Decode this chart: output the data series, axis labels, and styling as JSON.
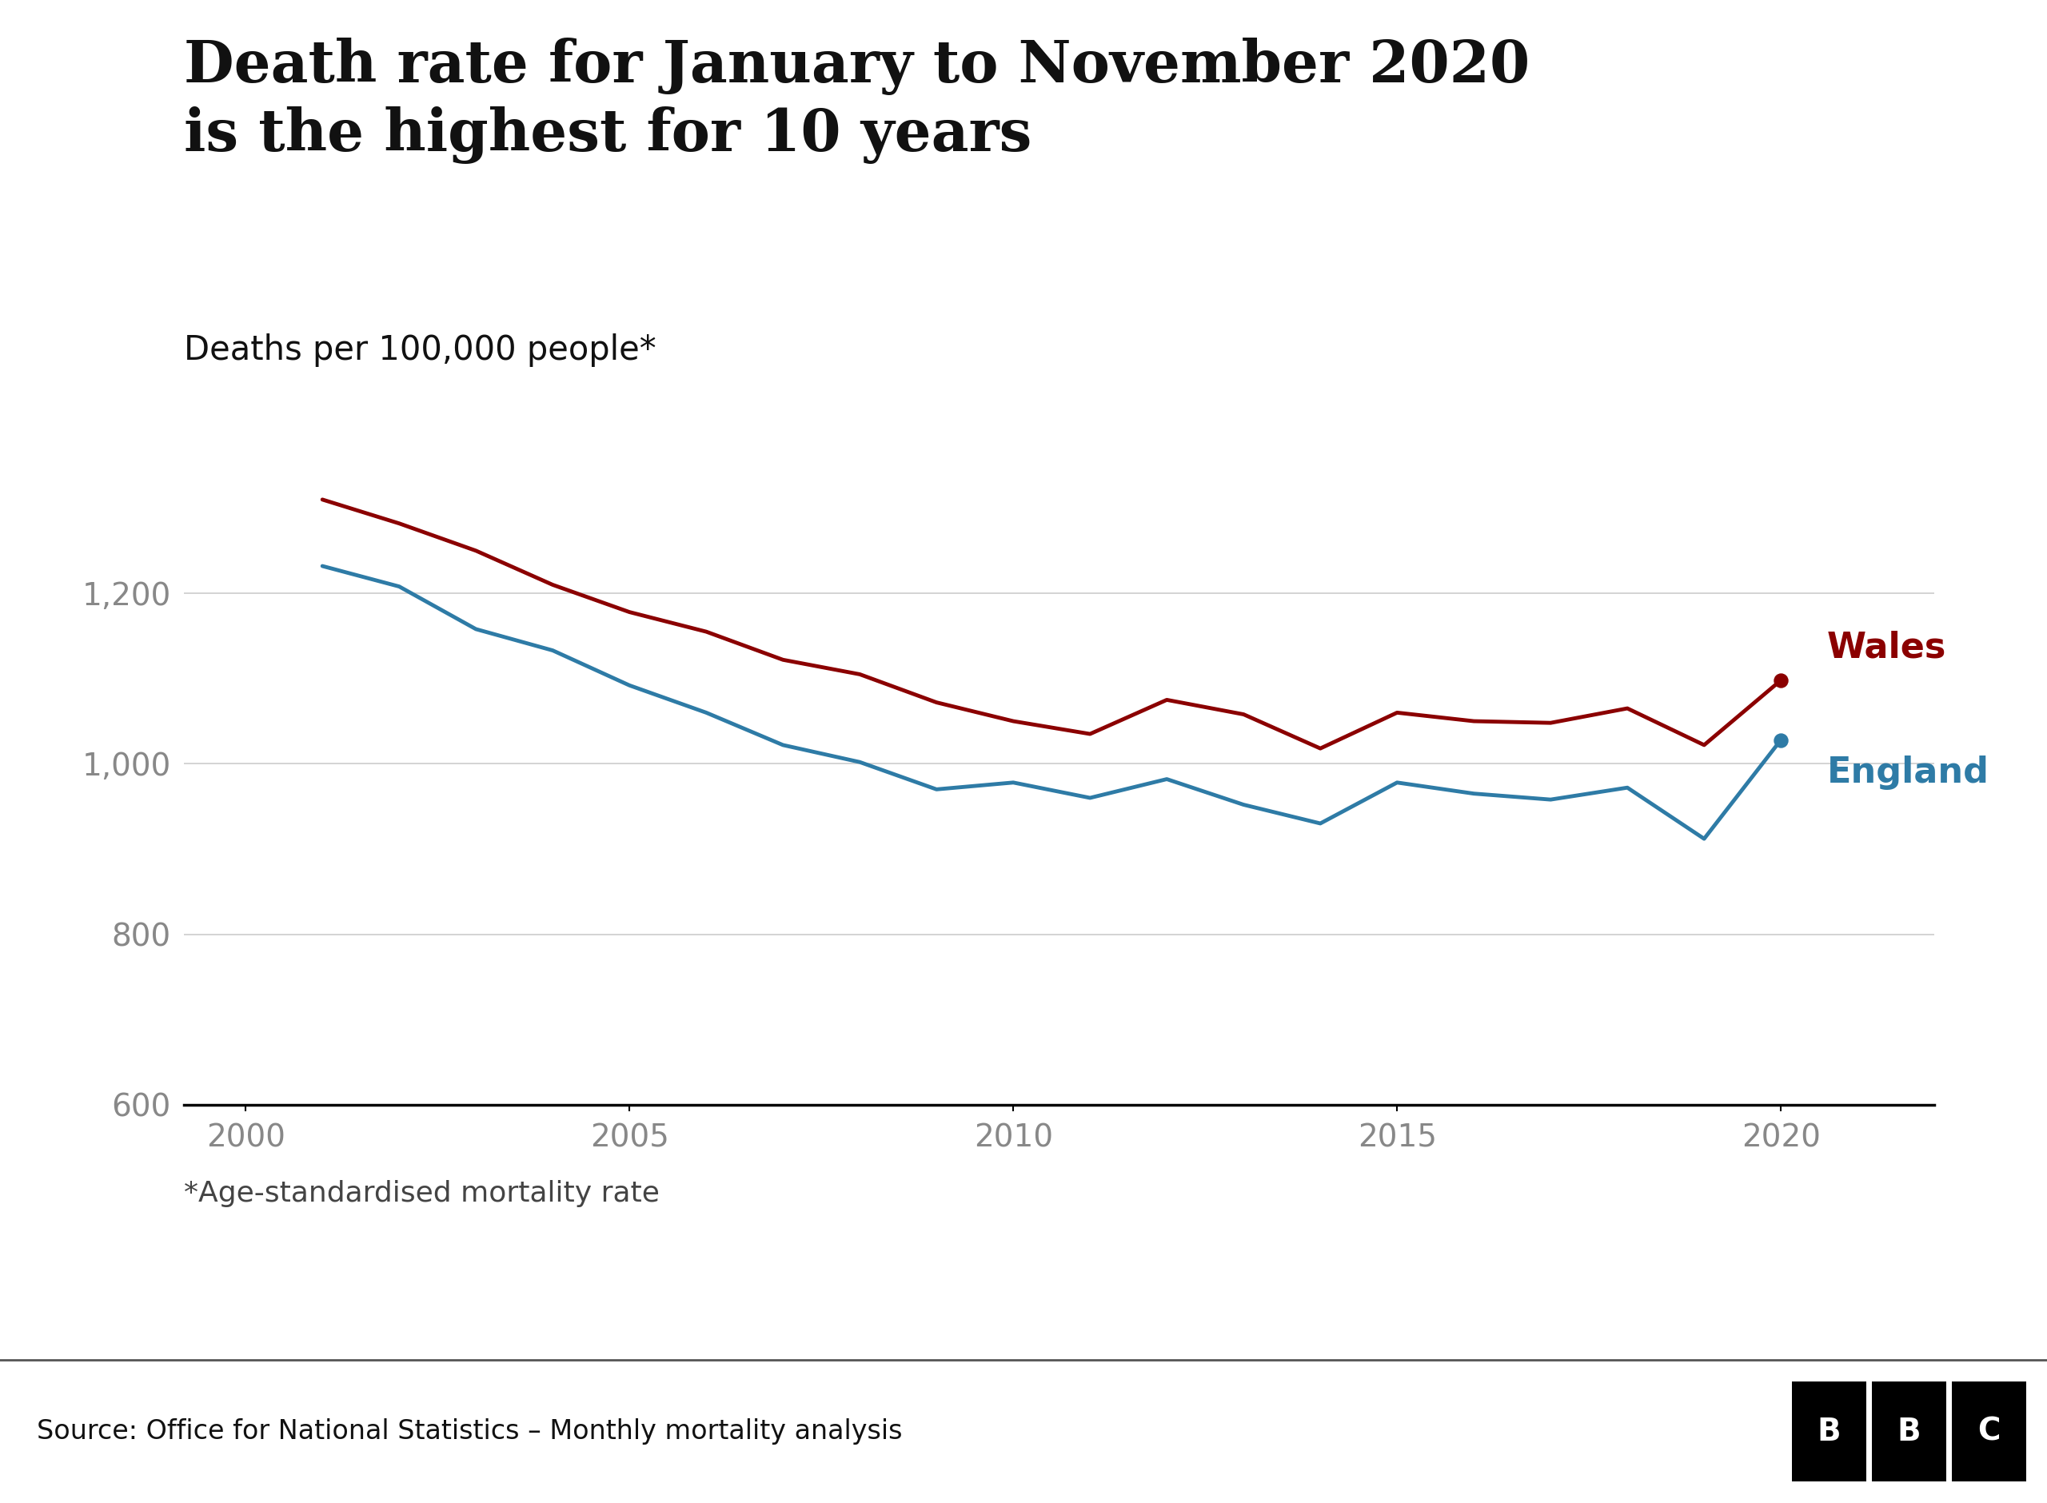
{
  "title_line1": "Death rate for January to November 2020",
  "title_line2": "is the highest for 10 years",
  "subtitle": "Deaths per 100,000 people*",
  "footnote": "*Age-standardised mortality rate",
  "source": "Source: Office for National Statistics – Monthly mortality analysis",
  "wales_color": "#8B0000",
  "england_color": "#2E7BA6",
  "background_color": "#FFFFFF",
  "years": [
    2001,
    2002,
    2003,
    2004,
    2005,
    2006,
    2007,
    2008,
    2009,
    2010,
    2011,
    2012,
    2013,
    2014,
    2015,
    2016,
    2017,
    2018,
    2019,
    2020
  ],
  "wales": [
    1310,
    1282,
    1250,
    1210,
    1178,
    1155,
    1122,
    1105,
    1072,
    1050,
    1035,
    1075,
    1058,
    1018,
    1060,
    1050,
    1048,
    1065,
    1022,
    1098
  ],
  "england": [
    1232,
    1208,
    1158,
    1133,
    1092,
    1060,
    1022,
    1002,
    970,
    978,
    960,
    982,
    952,
    930,
    978,
    965,
    958,
    972,
    912,
    1028
  ],
  "ylim": [
    600,
    1420
  ],
  "yticks": [
    600,
    800,
    1000,
    1200
  ],
  "xlabel_ticks": [
    2000,
    2005,
    2010,
    2015,
    2020
  ],
  "xlim": [
    1999.2,
    2022.0
  ],
  "line_width": 3.5,
  "dot_size": 150,
  "title_fontsize": 52,
  "subtitle_fontsize": 30,
  "tick_fontsize": 28,
  "label_fontsize": 32,
  "footnote_fontsize": 26,
  "source_fontsize": 24,
  "tick_color": "#888888",
  "grid_color": "#CCCCCC",
  "source_bg": "#EFEFEF"
}
